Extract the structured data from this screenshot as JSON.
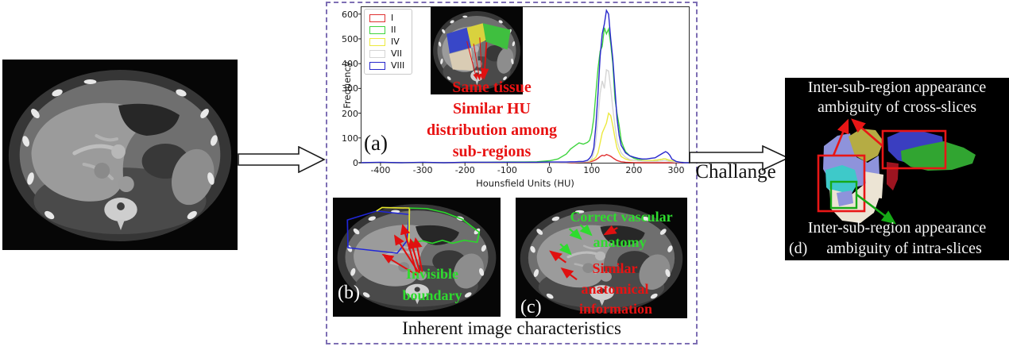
{
  "colors": {
    "dashed_border": "#7e6fb4",
    "note_red": "#e81212",
    "note_green": "#2edc2e",
    "annotation_box_red": "#e81616",
    "annotation_box_green": "#16a916",
    "seg_periwinkle": "#8e93db",
    "seg_olive": "#b5ac44",
    "seg_blue": "#3a3ec0",
    "seg_green": "#31a531",
    "seg_darkred": "#9c1420",
    "seg_cyan": "#3ec9c9",
    "seg_cream": "#ece4d4"
  },
  "flow": {
    "challenge_label": "Challange"
  },
  "box_caption": "Inherent image characteristics",
  "panel_a": {
    "label": "(a)",
    "notes": [
      "Same tissue",
      "Similar HU",
      "distribution among",
      "sub-regions"
    ]
  },
  "panel_b": {
    "label": "(b)",
    "notes": [
      "Invisible",
      "boundary"
    ]
  },
  "panel_c": {
    "label": "(c)",
    "green_notes": [
      "Correct vascular",
      "anatomy"
    ],
    "red_notes": [
      "Similar",
      "anatomical",
      "information"
    ]
  },
  "panel_d": {
    "label": "(d)",
    "top_lines": [
      "Inter-sub-region appearance",
      "ambiguity of cross-slices"
    ],
    "bottom_line1": "Inter-sub-region appearance",
    "bottom_line2": "ambiguity of intra-slices"
  },
  "chart_data": {
    "type": "line",
    "title": "",
    "xlabel": "Hounsfield Units (HU)",
    "ylabel": "Frequency",
    "xlim": [
      -445,
      330
    ],
    "ylim": [
      0,
      628
    ],
    "xticks": [
      -400,
      -300,
      -200,
      -100,
      0,
      100,
      200,
      300
    ],
    "yticks": [
      0,
      100,
      200,
      300,
      400,
      500,
      600
    ],
    "grid": false,
    "legend_position": "upper left",
    "x": [
      -450,
      -400,
      -350,
      -300,
      -250,
      -200,
      -150,
      -100,
      -60,
      -30,
      0,
      20,
      40,
      50,
      60,
      70,
      80,
      90,
      95,
      100,
      105,
      110,
      115,
      120,
      125,
      130,
      135,
      140,
      145,
      150,
      155,
      160,
      165,
      170,
      175,
      180,
      190,
      200,
      210,
      220,
      230,
      240,
      250,
      260,
      270,
      275,
      280,
      285,
      290,
      300,
      310,
      320,
      330
    ],
    "series": [
      {
        "name": "I",
        "color": "#e03030",
        "values": [
          0,
          0,
          0,
          0,
          0,
          0,
          0,
          0,
          0,
          0,
          0,
          0,
          0,
          0,
          0,
          2,
          2,
          3,
          4,
          5,
          8,
          12,
          18,
          25,
          30,
          28,
          33,
          30,
          26,
          20,
          14,
          9,
          6,
          4,
          3,
          2,
          1,
          0,
          0,
          0,
          0,
          0,
          0,
          0,
          0,
          0,
          0,
          0,
          0,
          0,
          0,
          0,
          0
        ]
      },
      {
        "name": "II",
        "color": "#3fd43f",
        "values": [
          0,
          0,
          0,
          0,
          0,
          2,
          2,
          3,
          3,
          4,
          8,
          15,
          35,
          55,
          68,
          80,
          75,
          82,
          90,
          120,
          180,
          280,
          380,
          450,
          470,
          545,
          520,
          540,
          480,
          400,
          260,
          200,
          150,
          90,
          65,
          45,
          28,
          18,
          13,
          10,
          8,
          8,
          10,
          12,
          15,
          15,
          12,
          10,
          8,
          4,
          2,
          1,
          0
        ]
      },
      {
        "name": "IV",
        "color": "#ece93f",
        "values": [
          0,
          0,
          0,
          0,
          0,
          0,
          0,
          0,
          0,
          0,
          0,
          0,
          2,
          2,
          3,
          3,
          4,
          5,
          6,
          10,
          15,
          22,
          40,
          80,
          120,
          140,
          160,
          200,
          190,
          150,
          100,
          60,
          40,
          25,
          20,
          15,
          10,
          10,
          8,
          8,
          8,
          8,
          10,
          12,
          15,
          15,
          12,
          10,
          8,
          4,
          2,
          0,
          0
        ]
      },
      {
        "name": "VII",
        "color": "#d5d5d5",
        "values": [
          0,
          0,
          0,
          0,
          0,
          0,
          0,
          0,
          0,
          0,
          0,
          0,
          0,
          2,
          2,
          3,
          3,
          5,
          8,
          15,
          40,
          90,
          180,
          280,
          330,
          300,
          375,
          370,
          300,
          220,
          150,
          90,
          60,
          40,
          30,
          22,
          13,
          10,
          8,
          6,
          5,
          5,
          5,
          6,
          8,
          8,
          6,
          5,
          4,
          2,
          1,
          0,
          0
        ]
      },
      {
        "name": "VIII",
        "color": "#2727cc",
        "values": [
          0,
          2,
          0,
          2,
          0,
          2,
          2,
          2,
          2,
          2,
          3,
          3,
          3,
          4,
          4,
          5,
          5,
          10,
          18,
          30,
          60,
          150,
          280,
          430,
          520,
          560,
          615,
          600,
          500,
          420,
          300,
          180,
          110,
          70,
          55,
          40,
          28,
          22,
          18,
          15,
          15,
          18,
          20,
          30,
          40,
          45,
          40,
          30,
          15,
          5,
          2,
          0,
          0
        ]
      }
    ]
  }
}
